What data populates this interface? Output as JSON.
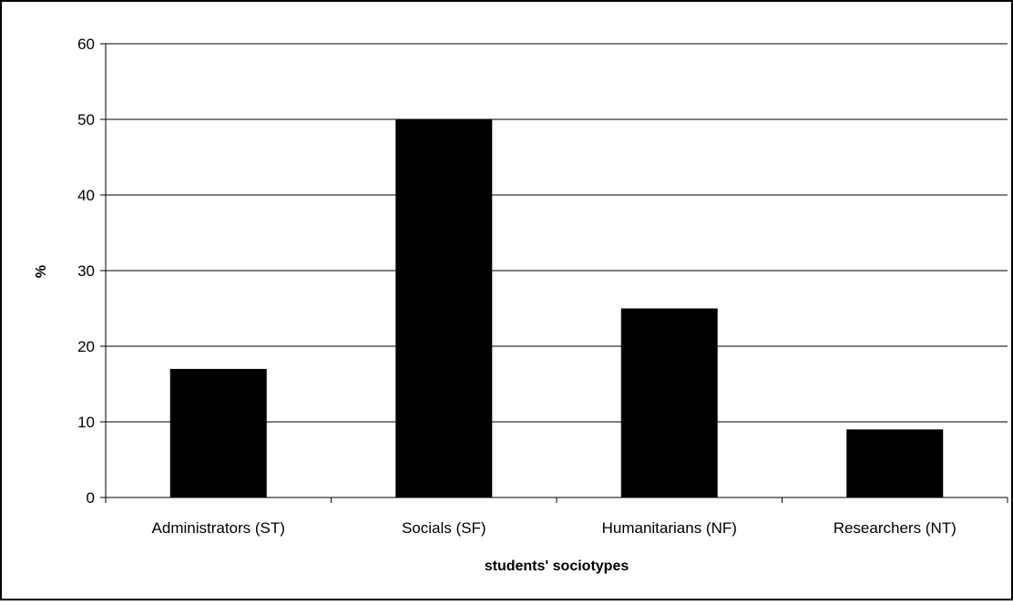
{
  "chart_data": {
    "type": "bar",
    "categories": [
      "Administrators (ST)",
      "Socials (SF)",
      "Humanitarians (NF)",
      "Researchers (NT)"
    ],
    "values": [
      17,
      50,
      25,
      9
    ],
    "title": "",
    "xlabel": "students' sociotypes",
    "ylabel": "%",
    "ylim": [
      0,
      60
    ],
    "yticks": [
      0,
      10,
      20,
      30,
      40,
      50,
      60
    ],
    "grid": true,
    "bar_color": "#000000",
    "legend": false
  }
}
